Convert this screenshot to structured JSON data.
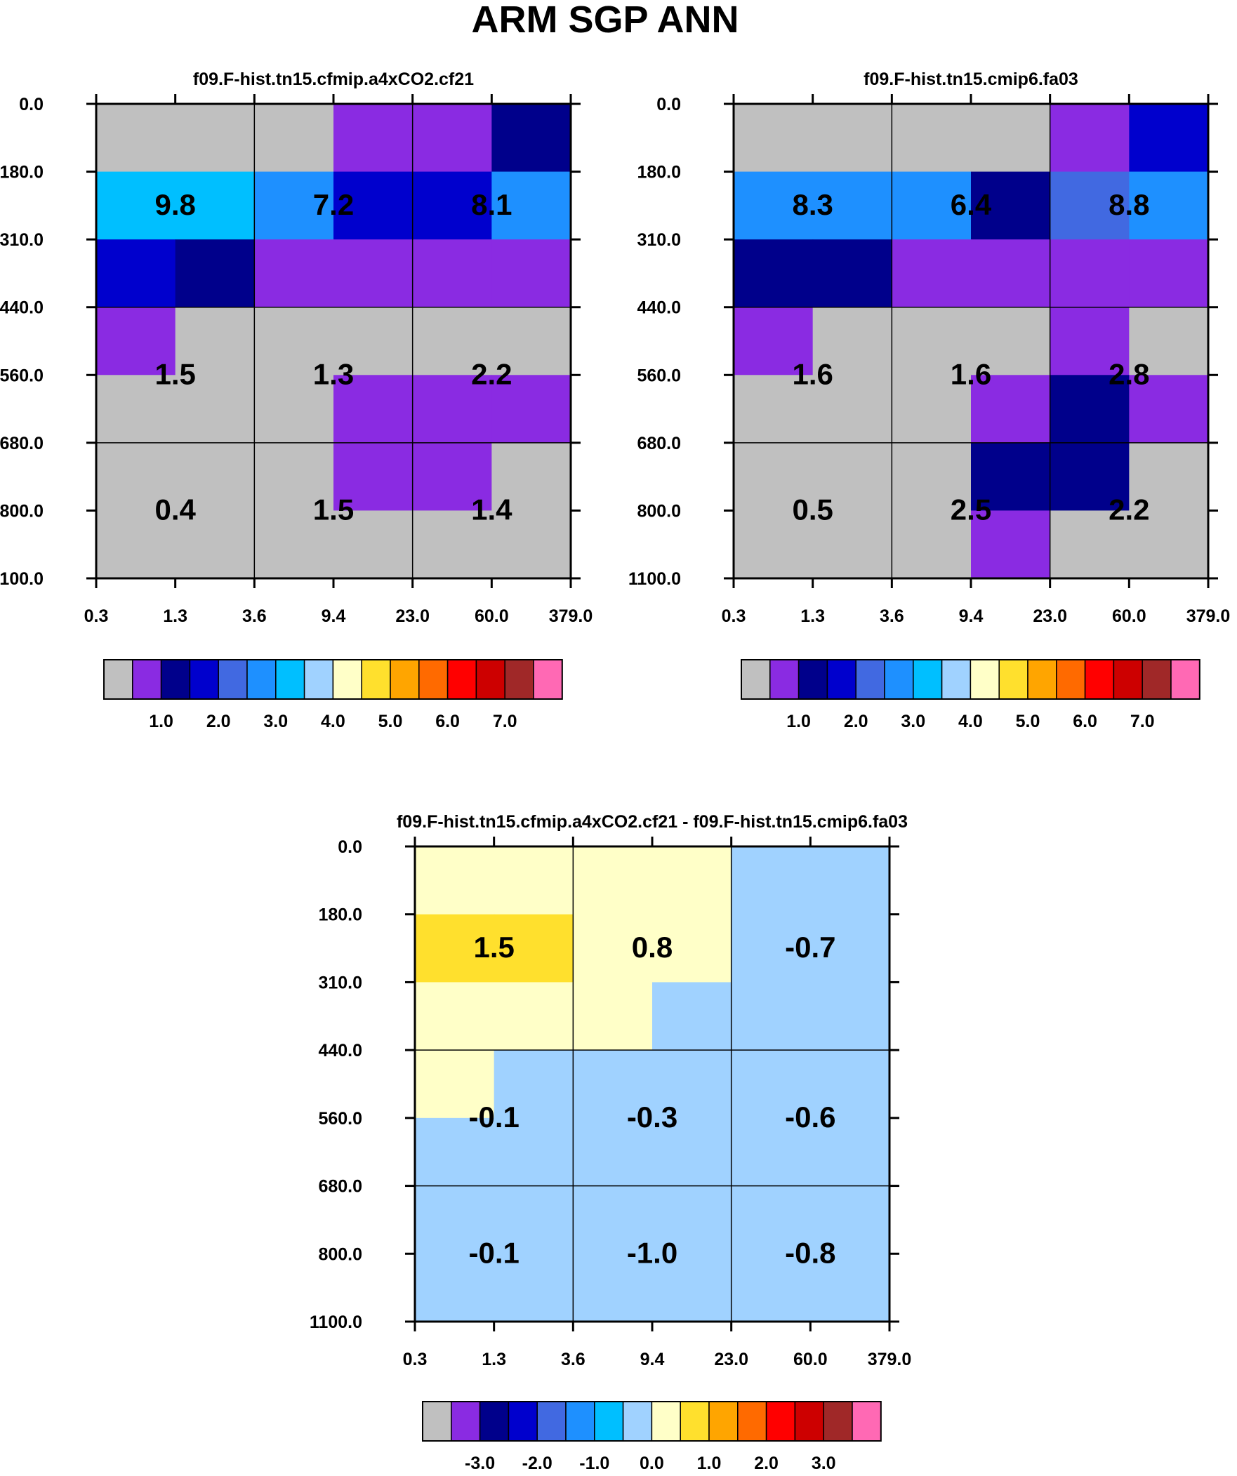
{
  "title": "ARM SGP ANN",
  "chart_data": [
    {
      "type": "heatmap",
      "title": "f09.F-hist.tn15.cfmip.a4xCO2.cf21",
      "x_ticks": [
        "0.3",
        "1.3",
        "3.6",
        "9.4",
        "23.0",
        "60.0",
        "379.0"
      ],
      "y_ticks": [
        "0.0",
        "180.0",
        "310.0",
        "440.0",
        "560.0",
        "680.0",
        "800.0",
        "1100.0"
      ],
      "cells": [
        [
          0,
          0,
          0,
          1,
          1,
          2
        ],
        [
          6,
          6,
          5,
          3,
          3,
          5
        ],
        [
          3,
          2,
          1,
          1,
          1,
          1
        ],
        [
          1,
          0,
          0,
          0,
          0,
          0
        ],
        [
          0,
          0,
          0,
          1,
          1,
          1
        ],
        [
          0,
          0,
          0,
          1,
          1,
          0
        ],
        [
          0,
          0,
          0,
          0,
          0,
          0
        ]
      ],
      "box_values": [
        [
          "9.8",
          "7.2",
          "8.1"
        ],
        [
          "1.5",
          "1.3",
          "2.2"
        ],
        [
          "0.4",
          "1.5",
          "1.4"
        ]
      ],
      "colorbar": {
        "colors": [
          "#c0c0c0",
          "#8a2be2",
          "#00008b",
          "#0000cd",
          "#4169e1",
          "#1e90ff",
          "#00bfff",
          "#a0d2ff",
          "#ffffc8",
          "#ffe02d",
          "#ffa500",
          "#ff6a00",
          "#ff0000",
          "#cd0000",
          "#a02828",
          "#ff69b4"
        ],
        "labels": [
          "1.0",
          "2.0",
          "3.0",
          "4.0",
          "5.0",
          "6.0",
          "7.0"
        ],
        "label_bounds": [
          2,
          4,
          6,
          8,
          10,
          12,
          14
        ]
      }
    },
    {
      "type": "heatmap",
      "title": "f09.F-hist.tn15.cmip6.fa03",
      "x_ticks": [
        "0.3",
        "1.3",
        "3.6",
        "9.4",
        "23.0",
        "60.0",
        "379.0"
      ],
      "y_ticks": [
        "0.0",
        "180.0",
        "310.0",
        "440.0",
        "560.0",
        "680.0",
        "800.0",
        "1100.0"
      ],
      "cells": [
        [
          0,
          0,
          0,
          0,
          1,
          3
        ],
        [
          5,
          5,
          5,
          2,
          4,
          5
        ],
        [
          2,
          2,
          1,
          1,
          1,
          1
        ],
        [
          1,
          0,
          0,
          0,
          1,
          0
        ],
        [
          0,
          0,
          0,
          1,
          2,
          1
        ],
        [
          0,
          0,
          0,
          2,
          2,
          0
        ],
        [
          0,
          0,
          0,
          1,
          0,
          0
        ]
      ],
      "box_values": [
        [
          "8.3",
          "6.4",
          "8.8"
        ],
        [
          "1.6",
          "1.6",
          "2.8"
        ],
        [
          "0.5",
          "2.5",
          "2.2"
        ]
      ],
      "colorbar": {
        "colors": [
          "#c0c0c0",
          "#8a2be2",
          "#00008b",
          "#0000cd",
          "#4169e1",
          "#1e90ff",
          "#00bfff",
          "#a0d2ff",
          "#ffffc8",
          "#ffe02d",
          "#ffa500",
          "#ff6a00",
          "#ff0000",
          "#cd0000",
          "#a02828",
          "#ff69b4"
        ],
        "labels": [
          "1.0",
          "2.0",
          "3.0",
          "4.0",
          "5.0",
          "6.0",
          "7.0"
        ],
        "label_bounds": [
          2,
          4,
          6,
          8,
          10,
          12,
          14
        ]
      }
    },
    {
      "type": "heatmap",
      "title": "f09.F-hist.tn15.cfmip.a4xCO2.cf21 - f09.F-hist.tn15.cmip6.fa03",
      "x_ticks": [
        "0.3",
        "1.3",
        "3.6",
        "9.4",
        "23.0",
        "60.0",
        "379.0"
      ],
      "y_ticks": [
        "0.0",
        "180.0",
        "310.0",
        "440.0",
        "560.0",
        "680.0",
        "800.0",
        "1100.0"
      ],
      "cells": [
        [
          8,
          8,
          8,
          8,
          7,
          7
        ],
        [
          9,
          9,
          8,
          8,
          7,
          7
        ],
        [
          8,
          8,
          8,
          7,
          7,
          7
        ],
        [
          8,
          7,
          7,
          7,
          7,
          7
        ],
        [
          7,
          7,
          7,
          7,
          7,
          7
        ],
        [
          7,
          7,
          7,
          7,
          7,
          7
        ],
        [
          7,
          7,
          7,
          7,
          7,
          7
        ]
      ],
      "box_values": [
        [
          "1.5",
          "0.8",
          "-0.7"
        ],
        [
          "-0.1",
          "-0.3",
          "-0.6"
        ],
        [
          "-0.1",
          "-1.0",
          "-0.8"
        ]
      ],
      "colorbar": {
        "colors": [
          "#c0c0c0",
          "#8a2be2",
          "#00008b",
          "#0000cd",
          "#4169e1",
          "#1e90ff",
          "#00bfff",
          "#a0d2ff",
          "#ffffc8",
          "#ffe02d",
          "#ffa500",
          "#ff6a00",
          "#ff0000",
          "#cd0000",
          "#a02828",
          "#ff69b4"
        ],
        "labels": [
          "-3.0",
          "-2.0",
          "-1.0",
          "0.0",
          "1.0",
          "2.0",
          "3.0"
        ],
        "label_bounds": [
          2,
          4,
          6,
          8,
          10,
          12,
          14
        ]
      }
    }
  ]
}
